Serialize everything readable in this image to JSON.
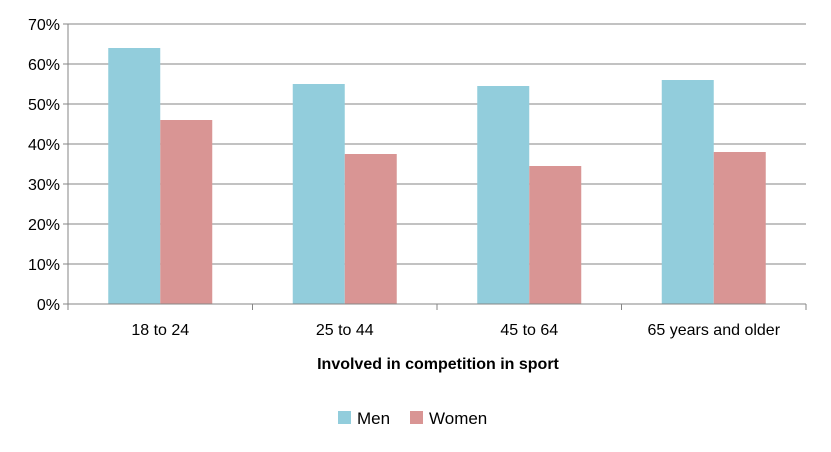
{
  "chart_data": {
    "type": "bar",
    "title": "",
    "xlabel": "Involved in competition in sport",
    "ylabel": "",
    "categories": [
      "18 to 24",
      "25 to 44",
      "45 to 64",
      "65 years and older"
    ],
    "series": [
      {
        "name": "Men",
        "color": "#92CDDC",
        "values": [
          64,
          55,
          54.5,
          56
        ]
      },
      {
        "name": "Women",
        "color": "#D99594",
        "values": [
          46,
          37.5,
          34.5,
          38
        ]
      }
    ],
    "ylim": [
      0,
      70
    ],
    "yticks": [
      0,
      10,
      20,
      30,
      40,
      50,
      60,
      70
    ],
    "ytick_labels": [
      "0%",
      "10%",
      "20%",
      "30%",
      "40%",
      "50%",
      "60%",
      "70%"
    ],
    "grid": true,
    "legend_position": "bottom"
  }
}
